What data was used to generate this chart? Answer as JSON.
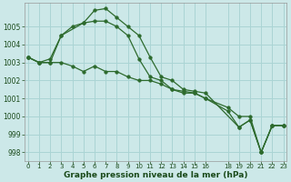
{
  "background_color": "#cce8e8",
  "grid_color": "#aad4d4",
  "line_color": "#2d6a2d",
  "xlabel": "Graphe pression niveau de la mer (hPa)",
  "ylim": [
    997.5,
    1006.3
  ],
  "xlim": [
    -0.3,
    23.3
  ],
  "yticks": [
    998,
    999,
    1000,
    1001,
    1002,
    1003,
    1004,
    1005
  ],
  "xtick_positions": [
    0,
    1,
    2,
    3,
    4,
    5,
    6,
    7,
    8,
    9,
    10,
    11,
    12,
    13,
    14,
    15,
    16,
    18,
    19,
    20,
    21,
    22,
    23
  ],
  "xtick_labels": [
    "0",
    "1",
    "2",
    "3",
    "4",
    "5",
    "6",
    "7",
    "8",
    "9",
    "10",
    "11",
    "12",
    "13",
    "14",
    "15",
    "16",
    "18",
    "19",
    "20",
    "21",
    "22",
    "23"
  ],
  "line1_x": [
    0,
    1,
    2,
    3,
    5,
    6,
    7,
    8,
    9,
    10,
    11,
    12,
    13,
    14,
    15,
    16,
    19,
    20,
    21,
    22,
    23
  ],
  "line1_y": [
    1003.3,
    1003.0,
    1003.0,
    1004.5,
    1005.2,
    1005.9,
    1006.0,
    1005.5,
    1005.0,
    1004.5,
    1003.3,
    1002.2,
    1002.0,
    1001.5,
    1001.4,
    1001.3,
    999.4,
    999.8,
    998.0,
    999.5,
    999.5
  ],
  "line2_x": [
    0,
    1,
    2,
    3,
    4,
    5,
    6,
    7,
    8,
    9,
    10,
    11,
    12,
    13,
    14,
    15,
    16,
    18,
    19,
    20,
    21,
    22,
    23
  ],
  "line2_y": [
    1003.3,
    1003.0,
    1003.2,
    1004.5,
    1005.0,
    1005.2,
    1005.3,
    1005.3,
    1005.0,
    1004.5,
    1003.2,
    1002.2,
    1002.0,
    1001.5,
    1001.4,
    1001.3,
    1001.0,
    1000.5,
    1000.0,
    1000.0,
    998.0,
    999.5,
    999.5
  ],
  "line3_x": [
    0,
    1,
    2,
    3,
    4,
    5,
    6,
    7,
    8,
    9,
    10,
    11,
    12,
    13,
    14,
    15,
    16,
    18,
    19,
    20,
    21,
    22,
    23
  ],
  "line3_y": [
    1003.3,
    1003.0,
    1003.0,
    1003.0,
    1002.8,
    1002.5,
    1002.8,
    1002.5,
    1002.5,
    1002.2,
    1002.0,
    1002.0,
    1001.8,
    1001.5,
    1001.3,
    1001.3,
    1001.0,
    1000.3,
    999.4,
    999.8,
    998.0,
    999.5,
    999.5
  ]
}
